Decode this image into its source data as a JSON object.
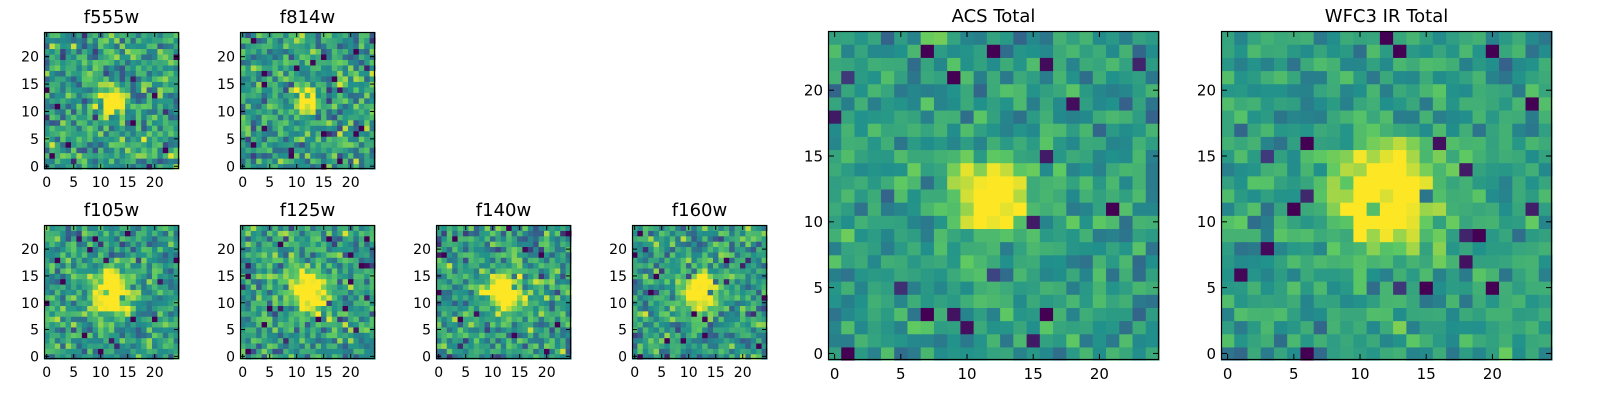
{
  "colors": {
    "background": "#ffffff",
    "axes": "#000000",
    "colormap": [
      "#440154",
      "#3b528b",
      "#21918c",
      "#5ec962",
      "#fde725"
    ]
  },
  "chart_data": [
    {
      "id": "f555w",
      "type": "heatmap",
      "title": "f555w",
      "grid_size": 25,
      "xlim": [
        0,
        24
      ],
      "ylim": [
        0,
        24
      ],
      "xticks": [
        "0",
        "5",
        "10",
        "15",
        "20"
      ],
      "yticks": [
        "0",
        "5",
        "10",
        "15",
        "20"
      ],
      "colormap": "viridis",
      "source_center": [
        12,
        12
      ],
      "source_radius": 1.6,
      "noise": 0.26,
      "seed": 11
    },
    {
      "id": "f814w",
      "type": "heatmap",
      "title": "f814w",
      "grid_size": 25,
      "xlim": [
        0,
        24
      ],
      "ylim": [
        0,
        24
      ],
      "xticks": [
        "0",
        "5",
        "10",
        "15",
        "20"
      ],
      "yticks": [
        "0",
        "5",
        "10",
        "15",
        "20"
      ],
      "colormap": "viridis",
      "source_center": [
        12,
        12
      ],
      "source_radius": 1.5,
      "noise": 0.25,
      "seed": 23
    },
    {
      "id": "f105w",
      "type": "heatmap",
      "title": "f105w",
      "grid_size": 25,
      "xlim": [
        0,
        24
      ],
      "ylim": [
        0,
        24
      ],
      "xticks": [
        "0",
        "5",
        "10",
        "15",
        "20"
      ],
      "yticks": [
        "0",
        "5",
        "10",
        "15",
        "20"
      ],
      "colormap": "viridis",
      "source_center": [
        12,
        12
      ],
      "source_radius": 2.6,
      "noise": 0.22,
      "seed": 37
    },
    {
      "id": "f125w",
      "type": "heatmap",
      "title": "f125w",
      "grid_size": 25,
      "xlim": [
        0,
        24
      ],
      "ylim": [
        0,
        24
      ],
      "xticks": [
        "0",
        "5",
        "10",
        "15",
        "20"
      ],
      "yticks": [
        "0",
        "5",
        "10",
        "15",
        "20"
      ],
      "colormap": "viridis",
      "source_center": [
        12,
        12
      ],
      "source_radius": 2.5,
      "noise": 0.24,
      "seed": 41
    },
    {
      "id": "f140w",
      "type": "heatmap",
      "title": "f140w",
      "grid_size": 25,
      "xlim": [
        0,
        24
      ],
      "ylim": [
        0,
        24
      ],
      "xticks": [
        "0",
        "5",
        "10",
        "15",
        "20"
      ],
      "yticks": [
        "0",
        "5",
        "10",
        "15",
        "20"
      ],
      "colormap": "viridis",
      "source_center": [
        12,
        12
      ],
      "source_radius": 2.4,
      "noise": 0.25,
      "seed": 53
    },
    {
      "id": "f160w",
      "type": "heatmap",
      "title": "f160w",
      "grid_size": 25,
      "xlim": [
        0,
        24
      ],
      "ylim": [
        0,
        24
      ],
      "xticks": [
        "0",
        "5",
        "10",
        "15",
        "20"
      ],
      "yticks": [
        "0",
        "5",
        "10",
        "15",
        "20"
      ],
      "colormap": "viridis",
      "source_center": [
        12,
        12
      ],
      "source_radius": 2.5,
      "noise": 0.24,
      "seed": 67
    },
    {
      "id": "acs-total",
      "type": "heatmap",
      "title": "ACS Total",
      "grid_size": 25,
      "xlim": [
        0,
        24
      ],
      "ylim": [
        0,
        24
      ],
      "xticks": [
        "0",
        "5",
        "10",
        "15",
        "20"
      ],
      "yticks": [
        "0",
        "5",
        "10",
        "15",
        "20"
      ],
      "colormap": "viridis",
      "source_center": [
        12,
        12
      ],
      "source_radius": 1.8,
      "noise": 0.16,
      "seed": 79
    },
    {
      "id": "wfc3-ir-total",
      "type": "heatmap",
      "title": "WFC3 IR Total",
      "grid_size": 25,
      "xlim": [
        0,
        24
      ],
      "ylim": [
        0,
        24
      ],
      "xticks": [
        "0",
        "5",
        "10",
        "15",
        "20"
      ],
      "yticks": [
        "0",
        "5",
        "10",
        "15",
        "20"
      ],
      "colormap": "viridis",
      "source_center": [
        12,
        12
      ],
      "source_radius": 2.6,
      "noise": 0.15,
      "seed": 97
    }
  ]
}
